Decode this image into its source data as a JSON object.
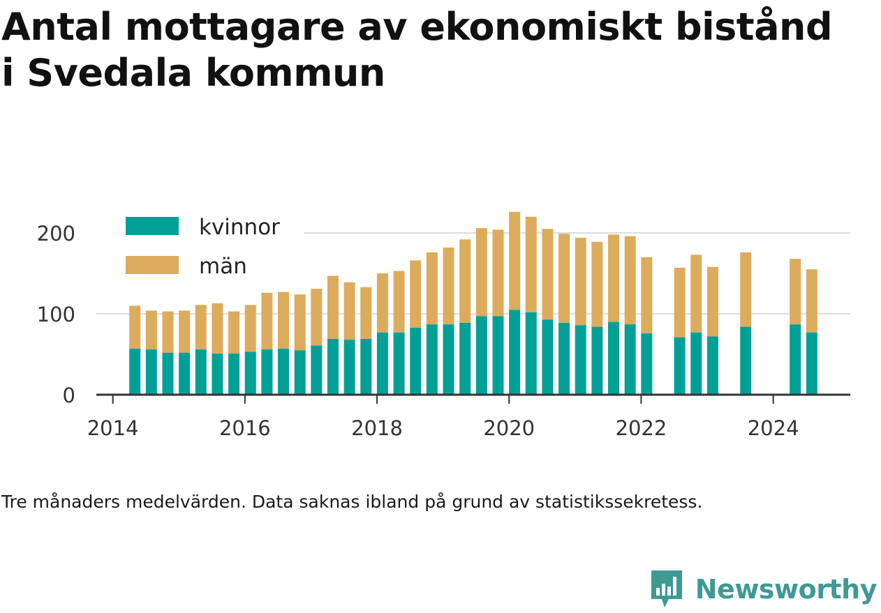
{
  "header": {
    "title": "Antal mottagare av ekonomiskt bistånd i Svedala kommun"
  },
  "footer": {
    "note": "Tre månaders medelvärden. Data saknas ibland på grund av statistikssekretess.",
    "brand": "Newsworthy"
  },
  "colors": {
    "kvinnor": "#00a096",
    "man": "#dcac5c",
    "brand": "#3f9994",
    "axis": "#333333",
    "grid": "#dddddd"
  },
  "icons": {
    "brand_logo": "bar-chart-speech-bubble-icon"
  },
  "chart_data": {
    "type": "bar",
    "stacked": true,
    "title": "Antal mottagare av ekonomiskt bistånd i Svedala kommun",
    "xlabel": "",
    "ylabel": "",
    "x_ticks": [
      "2014",
      "2016",
      "2018",
      "2020",
      "2022",
      "2024"
    ],
    "y_ticks": [
      0,
      100,
      200
    ],
    "ylim": [
      0,
      230
    ],
    "xlim": [
      "2013-10",
      "2025-03"
    ],
    "grid": "horizontal",
    "legend_position": "top-left",
    "categories": [
      "2014-05",
      "2014-08",
      "2014-11",
      "2015-02",
      "2015-05",
      "2015-08",
      "2015-11",
      "2016-02",
      "2016-05",
      "2016-08",
      "2016-11",
      "2017-02",
      "2017-05",
      "2017-08",
      "2017-11",
      "2018-02",
      "2018-05",
      "2018-08",
      "2018-11",
      "2019-02",
      "2019-05",
      "2019-08",
      "2019-11",
      "2020-02",
      "2020-05",
      "2020-08",
      "2020-11",
      "2021-02",
      "2021-05",
      "2021-08",
      "2021-11",
      "2022-02",
      "2022-08",
      "2022-11",
      "2023-02",
      "2023-08",
      "2024-05",
      "2024-08"
    ],
    "series": [
      {
        "name": "kvinnor",
        "values": [
          57,
          56,
          52,
          52,
          56,
          51,
          51,
          53,
          56,
          57,
          55,
          61,
          69,
          68,
          69,
          77,
          77,
          83,
          87,
          87,
          89,
          97,
          97,
          105,
          102,
          93,
          89,
          86,
          84,
          90,
          87,
          76,
          71,
          77,
          72,
          84,
          87,
          77
        ]
      },
      {
        "name": "män",
        "values": [
          53,
          48,
          51,
          52,
          55,
          62,
          52,
          58,
          70,
          70,
          69,
          70,
          78,
          71,
          64,
          73,
          76,
          83,
          89,
          95,
          103,
          109,
          107,
          121,
          118,
          112,
          110,
          108,
          105,
          108,
          109,
          94,
          86,
          96,
          86,
          92,
          81,
          78
        ]
      }
    ]
  }
}
